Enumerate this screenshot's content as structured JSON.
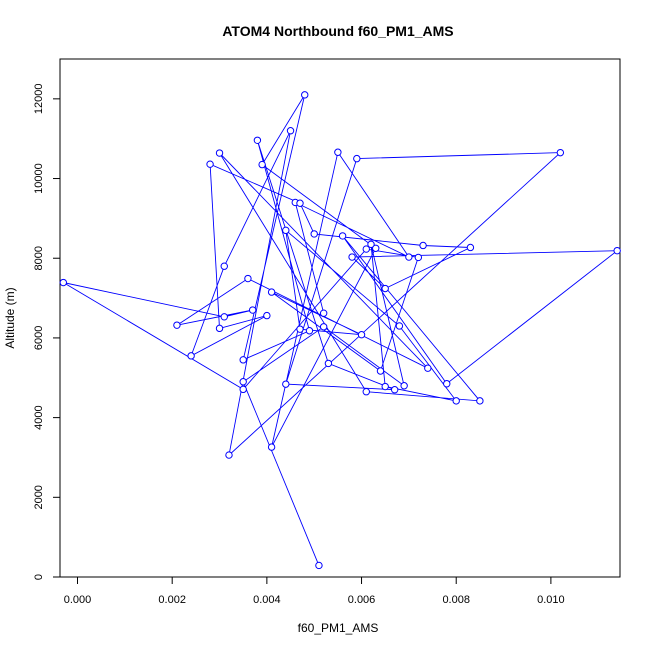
{
  "chart_data": {
    "type": "line",
    "title": "ATOM4 Northbound f60_PM1_AMS",
    "xlabel": "f60_PM1_AMS",
    "ylabel": "Altitude (m)",
    "xlim": [
      -0.00037,
      0.01146
    ],
    "ylim": [
      0,
      13000
    ],
    "xticks": [
      0,
      0.002,
      0.004,
      0.006,
      0.008,
      0.01
    ],
    "xtick_labels": [
      "0.000",
      "0.002",
      "0.004",
      "0.006",
      "0.008",
      "0.010"
    ],
    "yticks": [
      0,
      2000,
      4000,
      6000,
      8000,
      10000,
      12000
    ],
    "ytick_labels": [
      "0",
      "2000",
      "4000",
      "6000",
      "8000",
      "10000",
      "12000"
    ],
    "grid": false,
    "legend": "none",
    "series": [
      {
        "color": "#0000ff",
        "markers": "open-circle",
        "x": [
          0.0052,
          0.0046,
          0.007,
          0.0055,
          0.0041,
          0.0063,
          0.0039,
          0.0048,
          0.0035,
          0.0049,
          0.0038,
          0.0053,
          0.0067,
          0.0044,
          0.0059,
          0.0102,
          0.0032,
          0.0045,
          0.0031,
          0.0024,
          0.004,
          0.003,
          0.0028,
          0.0047,
          0.005,
          0.0073,
          0.0083,
          0.0065,
          0.0058,
          0.0114,
          0.0078,
          0.0056,
          0.0085,
          0.0061,
          0.003,
          0.0074,
          0.0036,
          0.0021,
          0.0037,
          0.0031,
          -0.0003,
          0.0035,
          0.0061,
          0.0072,
          0.0064,
          0.0041,
          0.006,
          0.0047,
          0.0044,
          0.0068,
          0.008,
          0.0065,
          0.0062,
          0.0069,
          0.0052,
          0.0035,
          0.0051
        ],
        "y": [
          6620,
          9400,
          8030,
          10660,
          3260,
          8250,
          10350,
          12100,
          5450,
          6180,
          10960,
          5360,
          4700,
          4840,
          10500,
          10650,
          3060,
          11200,
          7800,
          5550,
          6560,
          6240,
          10360,
          9380,
          8610,
          8320,
          8270,
          7240,
          8030,
          8190,
          4850,
          8560,
          4420,
          4650,
          10640,
          5240,
          7490,
          6320,
          6700,
          6530,
          7390,
          4710,
          8230,
          8020,
          5170,
          7150,
          6080,
          6220,
          8700,
          6300,
          4420,
          4780,
          8350,
          4800,
          6280,
          4900,
          290
        ]
      }
    ]
  }
}
